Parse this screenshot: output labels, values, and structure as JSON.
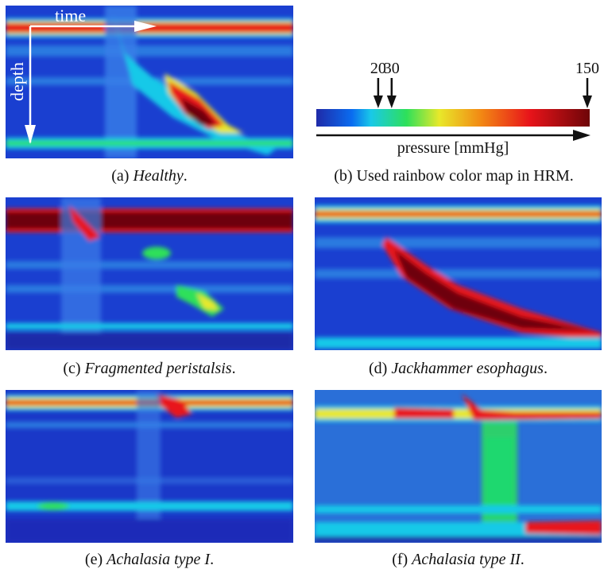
{
  "figure": {
    "panels": [
      {
        "id": "a",
        "label": "(a)",
        "name": "Healthy",
        "suffix": "."
      },
      {
        "id": "b",
        "label": "(b)",
        "name": "",
        "text": "Used rainbow color map in HRM."
      },
      {
        "id": "c",
        "label": "(c)",
        "name": "Fragmented peristalsis",
        "suffix": "."
      },
      {
        "id": "d",
        "label": "(d)",
        "name": "Jackhammer esophagus",
        "suffix": "."
      },
      {
        "id": "e",
        "label": "(e)",
        "name": "Achalasia type I",
        "suffix": "."
      },
      {
        "id": "f",
        "label": "(f)",
        "name": "Achalasia type II",
        "suffix": "."
      }
    ],
    "axes": {
      "x_label": "time",
      "y_label": "depth"
    },
    "colormap": {
      "ticks": [
        "20",
        "30",
        "150"
      ],
      "tick_values": [
        20,
        30,
        150
      ],
      "min": 0,
      "max": 150,
      "label": "pressure [mmHg]",
      "stops": [
        "#1f2aa8",
        "#0a6cf0",
        "#19c9e8",
        "#2ee05a",
        "#e8e82a",
        "#f28a14",
        "#e8141a",
        "#6e0508"
      ]
    }
  }
}
